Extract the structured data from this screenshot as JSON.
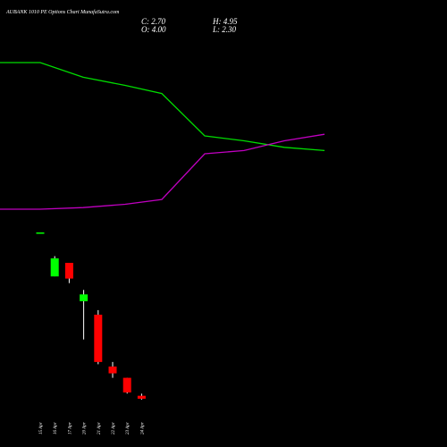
{
  "chart_data": {
    "type": "candlestick",
    "title": "AUBANK 1010  PE Options  Chart MunafaSutra.com",
    "ohlc_labels": {
      "c": "C: 2.70",
      "h": "H: 4.95",
      "o": "O: 4.00",
      "l": "L: 2.30"
    },
    "categories": [
      "15 Apr",
      "16 Apr",
      "17 Apr",
      "20 Apr",
      "21 Apr",
      "22 Apr",
      "23 Apr",
      "24 Apr"
    ],
    "candles": [
      {
        "date": "15 Apr",
        "open": 76.5,
        "high": 76.5,
        "low": 76.5,
        "close": 76.5
      },
      {
        "date": "16 Apr",
        "open": 57.0,
        "high": 66.0,
        "low": 57.0,
        "close": 65.0
      },
      {
        "date": "17 Apr",
        "open": 63.0,
        "high": 63.0,
        "low": 54.0,
        "close": 56.0
      },
      {
        "date": "20 Apr",
        "open": 46.0,
        "high": 51.0,
        "low": 29.0,
        "close": 49.0
      },
      {
        "date": "21 Apr",
        "open": 40.0,
        "high": 42.0,
        "low": 18.0,
        "close": 19.0
      },
      {
        "date": "22 Apr",
        "open": 17.0,
        "high": 19.0,
        "low": 12.0,
        "close": 14.0
      },
      {
        "date": "23 Apr",
        "open": 12.0,
        "high": 12.0,
        "low": 5.0,
        "close": 5.5
      },
      {
        "date": "24 Apr",
        "open": 4.0,
        "high": 4.95,
        "low": 2.3,
        "close": 2.7
      }
    ],
    "indicator_lines": [
      {
        "color": "#00dd00",
        "values": [
          200,
          200,
          191,
          186,
          181,
          155,
          152,
          148,
          146
        ]
      },
      {
        "color": "#c000c0",
        "values": [
          110,
          110,
          111,
          113,
          116,
          144,
          146,
          152,
          156
        ]
      }
    ],
    "indicator_x": [
      "",
      "15 Apr",
      "16 Apr",
      "17 Apr",
      "20 Apr",
      "21 Apr",
      "22 Apr",
      "23 Apr",
      "24 Apr"
    ],
    "colors": {
      "up": "#00ff00",
      "down": "#ff0000",
      "wick": "#ffffff",
      "background": "#000000"
    }
  }
}
